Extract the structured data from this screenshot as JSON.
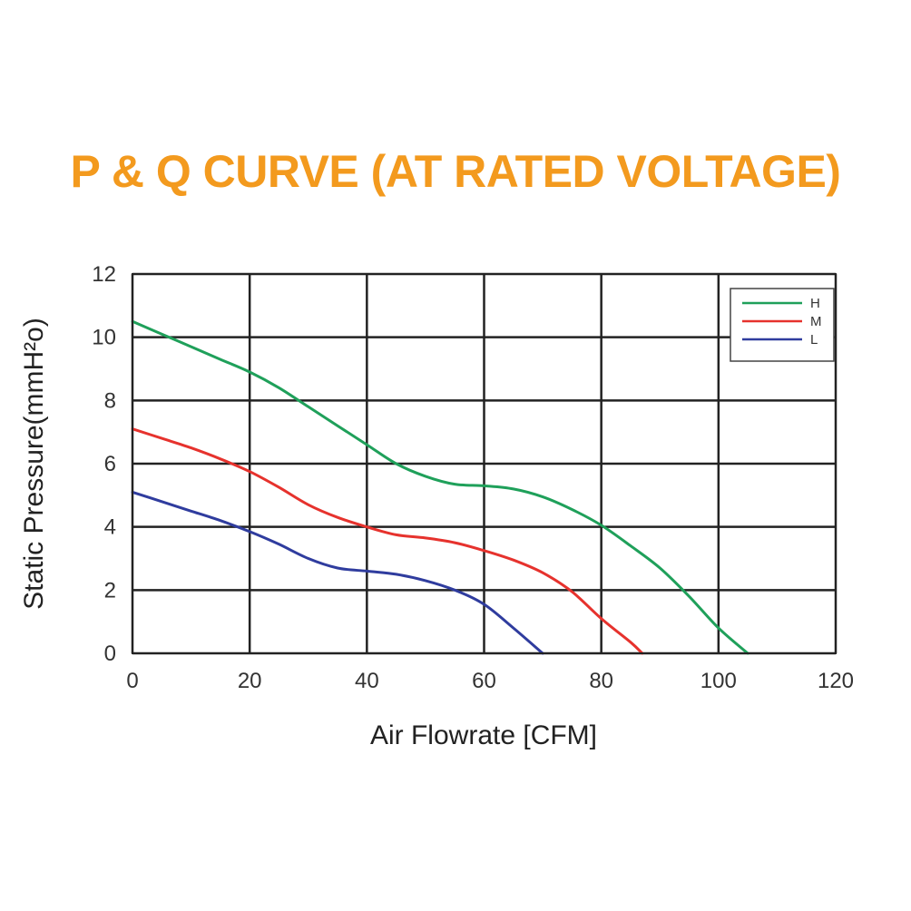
{
  "chart_data": {
    "type": "line",
    "title": "P & Q CURVE (AT RATED VOLTAGE)",
    "xlabel": "Air  Flowrate   [CFM]",
    "ylabel": "Static Pressure(mmH²o)",
    "xlim": [
      0,
      120
    ],
    "ylim": [
      0,
      12
    ],
    "xticks": [
      0,
      20,
      40,
      60,
      80,
      100,
      120
    ],
    "yticks": [
      0,
      2,
      4,
      6,
      8,
      10,
      12
    ],
    "xtick_labels": [
      "0",
      "20",
      "40",
      "60",
      "80",
      "100",
      "120"
    ],
    "ytick_labels": [
      "0",
      "2",
      "4",
      "6",
      "8",
      "10",
      "12"
    ],
    "grid": true,
    "legend_position": "top-right",
    "series": [
      {
        "name": "H",
        "color": "#1fa05a",
        "x": [
          0,
          5,
          10,
          15,
          20,
          25,
          30,
          35,
          40,
          45,
          50,
          55,
          60,
          65,
          70,
          75,
          80,
          85,
          90,
          95,
          100,
          105
        ],
        "y": [
          10.5,
          10.1,
          9.7,
          9.3,
          8.9,
          8.4,
          7.8,
          7.2,
          6.6,
          6.0,
          5.6,
          5.35,
          5.3,
          5.2,
          4.95,
          4.55,
          4.05,
          3.4,
          2.7,
          1.8,
          0.8,
          0.0
        ]
      },
      {
        "name": "M",
        "color": "#e6322d",
        "x": [
          0,
          5,
          10,
          15,
          20,
          25,
          30,
          35,
          40,
          45,
          50,
          55,
          60,
          65,
          70,
          75,
          80,
          85,
          87
        ],
        "y": [
          7.1,
          6.8,
          6.5,
          6.15,
          5.75,
          5.25,
          4.7,
          4.3,
          4.0,
          3.75,
          3.65,
          3.5,
          3.25,
          2.95,
          2.55,
          1.95,
          1.1,
          0.35,
          0.0
        ]
      },
      {
        "name": "L",
        "color": "#2f3c9e",
        "x": [
          0,
          5,
          10,
          15,
          20,
          25,
          30,
          35,
          40,
          45,
          50,
          55,
          60,
          65,
          70
        ],
        "y": [
          5.1,
          4.8,
          4.5,
          4.2,
          3.85,
          3.45,
          3.0,
          2.7,
          2.6,
          2.5,
          2.3,
          2.0,
          1.55,
          0.8,
          0.0
        ]
      }
    ]
  }
}
